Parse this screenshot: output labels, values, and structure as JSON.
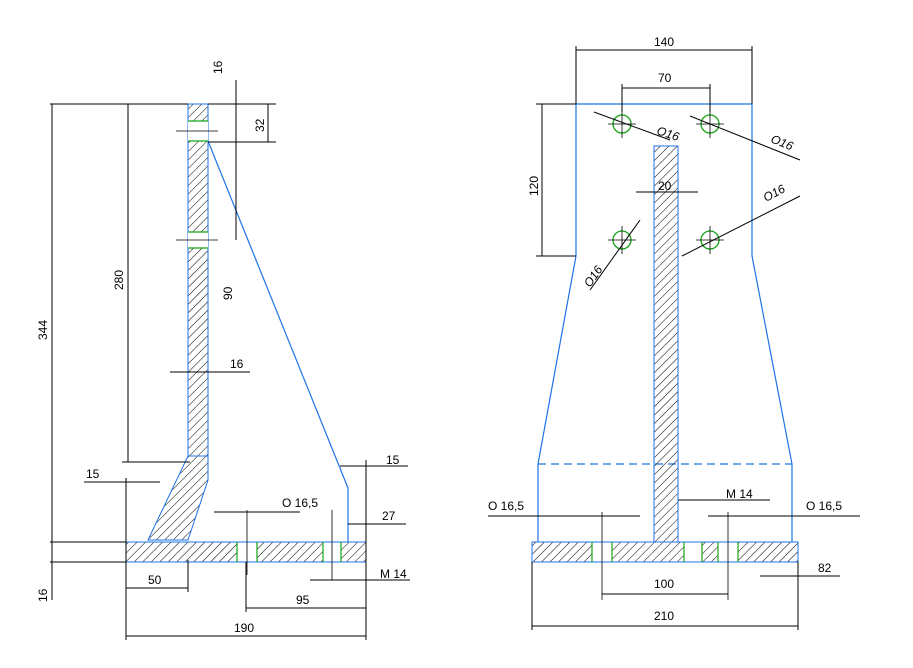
{
  "side_view": {
    "dims": {
      "top_width": "16",
      "hole_offset": "32",
      "inner_height": "280",
      "total_height": "344",
      "hole_spacing": "90",
      "web_thickness": "16",
      "gusset_base": "15",
      "base_thickness": "16",
      "hole_dia": "O 16,5",
      "right_edge": "15",
      "right_edge_height": "27",
      "thread": "M 14",
      "gusset_width": "50",
      "hole_to_edge": "95",
      "base_length": "190"
    }
  },
  "front_view": {
    "dims": {
      "top_width": "140",
      "hole_spacing_x": "70",
      "hole_spacing_y": "120",
      "hole_top_left": "O16",
      "hole_top_right": "O16",
      "hole_bottom_right": "O16",
      "hole_bottom_left": "O16",
      "web_width": "20",
      "base_hole_left": "O 16,5",
      "thread": "M 14",
      "base_hole_right": "O 16,5",
      "base_hole_spacing": "100",
      "right_offset": "82",
      "base_length": "210"
    }
  }
}
